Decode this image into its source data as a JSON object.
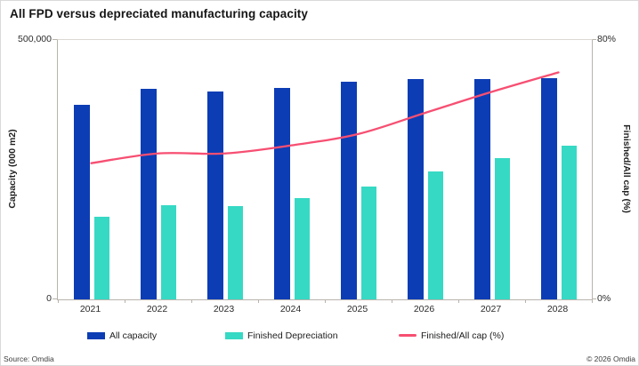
{
  "title": "All FPD versus depreciated manufacturing capacity",
  "footer": {
    "source": "Source: Omdia",
    "copyright": "© 2026 Omdia"
  },
  "colors": {
    "all_capacity": "#0c3db5",
    "finished_depreciation": "#36d9c4",
    "finished_all_cap_line": "#f74f72",
    "axis": "#b8b3ab",
    "plot_top_border": "#dcd8d2"
  },
  "chart_data": {
    "type": "bar",
    "subtype": "grouped bars with secondary-axis line",
    "title": "All FPD versus depreciated manufacturing capacity",
    "categories": [
      "2021",
      "2022",
      "2023",
      "2024",
      "2025",
      "2026",
      "2027",
      "2028"
    ],
    "series": [
      {
        "name": "All capacity",
        "type": "bar",
        "axis": "left",
        "values": [
          375000,
          405000,
          401000,
          408000,
          419000,
          424000,
          424000,
          426000
        ]
      },
      {
        "name": "Finished Depreciation",
        "type": "bar",
        "axis": "left",
        "values": [
          159000,
          182000,
          180000,
          196000,
          218000,
          247000,
          272000,
          296000
        ]
      },
      {
        "name": "Finished/All cap (%)",
        "type": "line",
        "axis": "right",
        "values": [
          42,
          45,
          45,
          47.5,
          51,
          57.5,
          64,
          70
        ]
      }
    ],
    "left_axis": {
      "title": "Capacity (000 m2)",
      "min": 0,
      "max": 500000,
      "max_label": "500,000",
      "min_label": "0"
    },
    "right_axis": {
      "title": "Finished/All cap (%)",
      "min": 0,
      "max": 80,
      "max_label": "80%",
      "min_label": "0%"
    },
    "grid": false,
    "legend_position": "bottom"
  },
  "legend": [
    {
      "label": "All capacity",
      "swatch": "bar",
      "color": "#0c3db5"
    },
    {
      "label": "Finished Depreciation",
      "swatch": "bar",
      "color": "#36d9c4"
    },
    {
      "label": "Finished/All cap (%)",
      "swatch": "line",
      "color": "#f74f72"
    }
  ]
}
